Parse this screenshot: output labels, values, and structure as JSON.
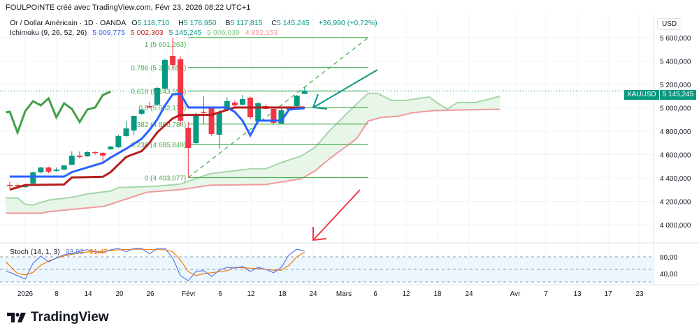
{
  "header": {
    "title": "FOULPOINTE créé avec TradingView.com, Févr 23, 2026 08:22 UTC+1"
  },
  "legend": {
    "symbol": "Or / Dollar Américain · 1D · OANDA",
    "o_label": "O",
    "o": "5 118,710",
    "h_label": "H",
    "h": "5 176,950",
    "b_label": "B",
    "b": "5 117,815",
    "c_label": "C",
    "c": "5 145,245",
    "change": "+36,990 (+0,72%)"
  },
  "ichimoku": {
    "label": "Ichimoku (9, 26, 52, 26)",
    "conversion": "5 009,775",
    "base": "5 002,303",
    "lagging": "5 145,245",
    "span_a": "5 006,039",
    "span_b": "4 892,153"
  },
  "stoch": {
    "label": "Stoch (14, 1, 3)",
    "k": "93,92",
    "d": "91,47"
  },
  "price_axis": {
    "currency": "USD",
    "ticks": [
      5600,
      5400,
      5200,
      5000,
      4800,
      4600,
      4400,
      4200,
      4000
    ],
    "tick_labels": [
      "5 600,000",
      "5 400,000",
      "5 200,000",
      "5 000,000",
      "4 800,000",
      "4 600,000",
      "4 400,000",
      "4 200,000",
      "4 000,000"
    ],
    "symbol_tag": "XAUUSD",
    "last_price": "5 145,245",
    "last_value": 5145.245
  },
  "stoch_axis": {
    "labels": [
      "80,00",
      "40,00"
    ],
    "values": [
      80,
      40
    ]
  },
  "time_axis": {
    "labels": [
      "2026",
      "8",
      "14",
      "20",
      "26",
      "Févr",
      "6",
      "12",
      "18",
      "24",
      "Mars",
      "6",
      "12",
      "18",
      "24",
      "Avr",
      "7",
      "13",
      "17",
      "23"
    ]
  },
  "colors": {
    "up": "#089981",
    "down": "#f23645",
    "conversion": "#2962ff",
    "base": "#b71c1c",
    "lagging": "#43a047",
    "span_a": "#a5d6a7",
    "span_b": "#ef9a9a",
    "cloud": "#e8f5e9",
    "fib": "#4caf50",
    "stoch_k": "#5b7ce6",
    "stoch_d": "#f57c00",
    "arrow_teal": "#089981",
    "arrow_red": "#f23645"
  },
  "fib": {
    "start": 23,
    "end": 46.2,
    "levels": [
      {
        "label": "1 (5 601,263)",
        "value": 5601.263
      },
      {
        "label": "0,786 (5 344,851)",
        "value": 5344.851
      },
      {
        "label": "0,618 (5 143,556)",
        "value": 5143.556
      },
      {
        "label": "0,5 (5 002,170)",
        "value": 5002.17
      },
      {
        "label": "0,382 (4 860,784)",
        "value": 4860.784
      },
      {
        "label": "0,236 (4 685,849)",
        "value": 4685.849
      },
      {
        "label": "0 (4 403,077)",
        "value": 4403.077
      }
    ]
  },
  "candles": [
    [
      4340,
      4370,
      4310,
      4335
    ],
    [
      4340,
      4355,
      4305,
      4330
    ],
    [
      4328,
      4345,
      4315,
      4330
    ],
    [
      4352,
      4455,
      4345,
      4448
    ],
    [
      4448,
      4495,
      4440,
      4490
    ],
    [
      4490,
      4495,
      4440,
      4454
    ],
    [
      4460,
      4490,
      4455,
      4472
    ],
    [
      4472,
      4515,
      4465,
      4507
    ],
    [
      4513,
      4627,
      4510,
      4591
    ],
    [
      4591,
      4627,
      4565,
      4579
    ],
    [
      4585,
      4630,
      4580,
      4621
    ],
    [
      4621,
      4628,
      4600,
      4615
    ],
    [
      4615,
      4620,
      4540,
      4591
    ],
    [
      4645,
      4675,
      4640,
      4669
    ],
    [
      4663,
      4770,
      4655,
      4758
    ],
    [
      4758,
      4885,
      4750,
      4824
    ],
    [
      4806,
      4935,
      4770,
      4931
    ],
    [
      4949,
      4990,
      4940,
      4985
    ],
    [
      5015,
      5050,
      4995,
      5003
    ],
    [
      5027,
      5180,
      5015,
      5170
    ],
    [
      5164,
      5420,
      5150,
      5410
    ],
    [
      5445,
      5601.263,
      5330,
      5367
    ],
    [
      5415,
      5440,
      4850,
      4890
    ],
    [
      4830,
      4880,
      4403.077,
      4657
    ],
    [
      4698,
      4960,
      4690,
      4943
    ],
    [
      4965,
      5100,
      4860,
      4960
    ],
    [
      4997,
      5010,
      4760,
      4776
    ],
    [
      4770,
      4985,
      4650,
      4961
    ],
    [
      4985,
      5090,
      4980,
      5057
    ],
    [
      5045,
      5065,
      5010,
      5021
    ],
    [
      5027,
      5110,
      5020,
      5075
    ],
    [
      5087,
      5095,
      4905,
      4919
    ],
    [
      4884,
      5050,
      4875,
      5039
    ],
    [
      5015,
      5030,
      4985,
      4991
    ],
    [
      4991,
      5000,
      4855,
      4872
    ],
    [
      4866,
      5000,
      4860,
      4979
    ],
    [
      4985,
      5010,
      4975,
      5003
    ],
    [
      5015,
      5110,
      5010,
      5104
    ],
    [
      5118.71,
      5176.95,
      5117.815,
      5145.245
    ]
  ],
  "ichimoku_series": {
    "conversion": [
      [
        0,
        4412
      ],
      [
        7,
        4412
      ],
      [
        8,
        4450
      ],
      [
        10,
        4490
      ],
      [
        12,
        4530
      ],
      [
        13,
        4575
      ],
      [
        15,
        4650
      ],
      [
        17,
        4735
      ],
      [
        18,
        4810
      ],
      [
        19,
        4900
      ],
      [
        20,
        5020
      ],
      [
        21,
        5115
      ],
      [
        22,
        5120
      ],
      [
        23,
        5003
      ],
      [
        28,
        5003
      ],
      [
        29,
        4965
      ],
      [
        30,
        4890
      ],
      [
        31,
        4764
      ],
      [
        32,
        4890
      ],
      [
        35,
        4890
      ],
      [
        36,
        4985
      ],
      [
        38,
        4997
      ]
    ],
    "base": [
      [
        0,
        4300
      ],
      [
        2,
        4340
      ],
      [
        7,
        4345
      ],
      [
        8,
        4405
      ],
      [
        12,
        4410
      ],
      [
        13,
        4450
      ],
      [
        15,
        4580
      ],
      [
        17,
        4630
      ],
      [
        18,
        4700
      ],
      [
        19,
        4790
      ],
      [
        21,
        4910
      ],
      [
        22,
        4940
      ],
      [
        26,
        4940
      ],
      [
        29,
        5003
      ],
      [
        38,
        5003
      ]
    ],
    "lagging": [
      [
        -0.5,
        4961
      ],
      [
        0,
        4967
      ],
      [
        1,
        4788
      ],
      [
        2,
        4973
      ],
      [
        3,
        5057
      ],
      [
        4,
        5021
      ],
      [
        5,
        5081
      ],
      [
        6,
        4919
      ],
      [
        7,
        5039
      ],
      [
        8,
        4991
      ],
      [
        9,
        4878
      ],
      [
        10,
        4985
      ],
      [
        11,
        5003
      ],
      [
        12,
        5110
      ],
      [
        13,
        5140
      ]
    ],
    "span_a": [
      [
        -0.5,
        4228
      ],
      [
        1,
        4228
      ],
      [
        2,
        4175
      ],
      [
        3,
        4169
      ],
      [
        5,
        4211
      ],
      [
        8,
        4235
      ],
      [
        10,
        4264
      ],
      [
        13,
        4288
      ],
      [
        14,
        4318
      ],
      [
        19,
        4330
      ],
      [
        22,
        4348
      ],
      [
        25.8,
        4437
      ],
      [
        31.2,
        4479
      ],
      [
        33,
        4479
      ],
      [
        34.8,
        4527
      ],
      [
        37.5,
        4587
      ],
      [
        39.3,
        4659
      ],
      [
        41.1,
        4796
      ],
      [
        42.9,
        4915
      ],
      [
        44.7,
        5034
      ],
      [
        46.2,
        5124
      ],
      [
        47.4,
        5124
      ],
      [
        49.2,
        5063
      ],
      [
        51,
        5063
      ],
      [
        52.8,
        5081
      ],
      [
        54.1,
        5093
      ],
      [
        55,
        5045
      ],
      [
        56.4,
        4991
      ],
      [
        57.7,
        5045
      ],
      [
        60,
        5045
      ],
      [
        61.8,
        5075
      ],
      [
        63.2,
        5099
      ]
    ],
    "span_b": [
      [
        -0.5,
        4099
      ],
      [
        4.1,
        4099
      ],
      [
        5,
        4111
      ],
      [
        7.7,
        4129
      ],
      [
        12.2,
        4158
      ],
      [
        17.7,
        4278
      ],
      [
        22.2,
        4302
      ],
      [
        25.8,
        4338
      ],
      [
        33,
        4344
      ],
      [
        37.5,
        4392
      ],
      [
        39.3,
        4458
      ],
      [
        41.1,
        4559
      ],
      [
        42.9,
        4648
      ],
      [
        44.7,
        4737
      ],
      [
        46.2,
        4887
      ],
      [
        47.8,
        4917
      ],
      [
        50.1,
        4929
      ],
      [
        51.9,
        4958
      ],
      [
        54.6,
        4976
      ],
      [
        58.2,
        4982
      ],
      [
        63.2,
        4988
      ]
    ]
  },
  "stoch_series": {
    "k": [
      [
        -0.5,
        45
      ],
      [
        0,
        43
      ],
      [
        2,
        27
      ],
      [
        3,
        65
      ],
      [
        4,
        82
      ],
      [
        5,
        68
      ],
      [
        6,
        77
      ],
      [
        7,
        85
      ],
      [
        8,
        88
      ],
      [
        9,
        93
      ],
      [
        10,
        97
      ],
      [
        11,
        92
      ],
      [
        12,
        90
      ],
      [
        13,
        97
      ],
      [
        14,
        100
      ],
      [
        15,
        92
      ],
      [
        16,
        100
      ],
      [
        17,
        100
      ],
      [
        18,
        87
      ],
      [
        19,
        100
      ],
      [
        20,
        100
      ],
      [
        21,
        77
      ],
      [
        22,
        35
      ],
      [
        23,
        23
      ],
      [
        24,
        45
      ],
      [
        25,
        47
      ],
      [
        26,
        33
      ],
      [
        27,
        48
      ],
      [
        28,
        55
      ],
      [
        29,
        53
      ],
      [
        30,
        57
      ],
      [
        31,
        45
      ],
      [
        32,
        55
      ],
      [
        33,
        50
      ],
      [
        34,
        42
      ],
      [
        35,
        55
      ],
      [
        36,
        85
      ],
      [
        37,
        98
      ],
      [
        38,
        93.92
      ]
    ],
    "d": [
      [
        -0.5,
        68
      ],
      [
        1,
        40
      ],
      [
        2,
        37
      ],
      [
        3,
        43
      ],
      [
        4,
        60
      ],
      [
        5,
        70
      ],
      [
        6,
        77
      ],
      [
        7,
        82
      ],
      [
        9,
        90
      ],
      [
        11,
        93
      ],
      [
        12,
        93
      ],
      [
        14,
        97
      ],
      [
        16,
        98
      ],
      [
        17,
        98
      ],
      [
        19,
        97
      ],
      [
        20,
        97
      ],
      [
        21,
        92
      ],
      [
        22,
        72
      ],
      [
        23,
        45
      ],
      [
        24,
        35
      ],
      [
        25,
        40
      ],
      [
        26,
        42
      ],
      [
        28,
        47
      ],
      [
        29,
        55
      ],
      [
        31,
        53
      ],
      [
        32,
        52
      ],
      [
        34,
        48
      ],
      [
        35,
        48
      ],
      [
        36,
        60
      ],
      [
        37,
        80
      ],
      [
        38,
        91.47
      ]
    ]
  },
  "brand": {
    "name": "TradingView"
  }
}
